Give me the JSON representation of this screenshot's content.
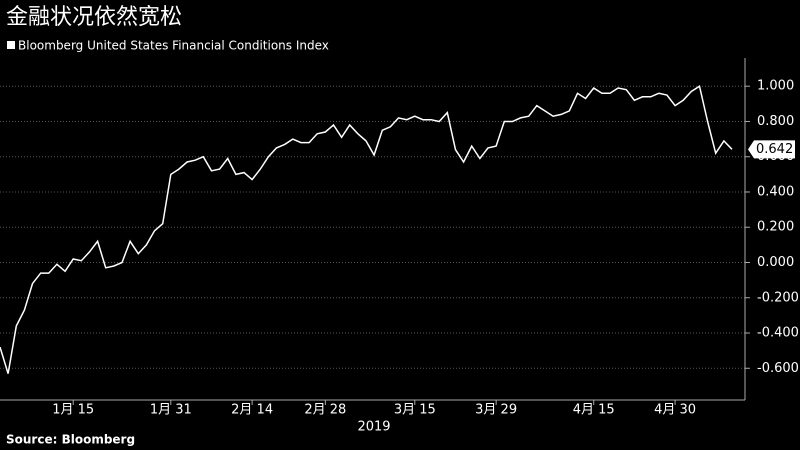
{
  "chart_data": {
    "type": "line",
    "title": "金融状况依然宽松",
    "legend_label": "Bloomberg United States Financial Conditions Index",
    "source": "Source: Bloomberg",
    "xlabel": "2019",
    "categories": [
      null,
      null,
      null,
      null,
      null,
      null,
      null,
      null,
      null,
      "1月 15",
      null,
      null,
      null,
      null,
      null,
      null,
      null,
      null,
      null,
      null,
      null,
      "1月 31",
      null,
      null,
      null,
      null,
      null,
      null,
      null,
      null,
      null,
      "2月 14",
      null,
      null,
      null,
      null,
      null,
      null,
      null,
      null,
      "2月 28",
      null,
      null,
      null,
      null,
      null,
      null,
      null,
      null,
      null,
      null,
      "3月 15",
      null,
      null,
      null,
      null,
      null,
      null,
      null,
      null,
      null,
      "3月 29",
      null,
      null,
      null,
      null,
      null,
      null,
      null,
      null,
      null,
      null,
      null,
      "4月 15",
      null,
      null,
      null,
      null,
      null,
      null,
      null,
      null,
      null,
      "4月 30",
      null,
      null,
      null,
      null,
      null,
      null,
      null
    ],
    "series": [
      {
        "name": "Bloomberg United States Financial Conditions Index",
        "color": "#ffffff",
        "values": [
          -0.48,
          -0.63,
          -0.36,
          -0.27,
          -0.12,
          -0.06,
          -0.06,
          -0.01,
          -0.05,
          0.02,
          0.01,
          0.06,
          0.12,
          -0.03,
          -0.02,
          0.0,
          0.12,
          0.05,
          0.1,
          0.18,
          0.22,
          0.5,
          0.53,
          0.57,
          0.58,
          0.6,
          0.52,
          0.53,
          0.59,
          0.5,
          0.51,
          0.47,
          0.53,
          0.6,
          0.65,
          0.67,
          0.7,
          0.68,
          0.68,
          0.73,
          0.74,
          0.78,
          0.71,
          0.78,
          0.73,
          0.69,
          0.61,
          0.75,
          0.77,
          0.82,
          0.81,
          0.83,
          0.81,
          0.81,
          0.8,
          0.85,
          0.64,
          0.57,
          0.66,
          0.59,
          0.65,
          0.66,
          0.8,
          0.8,
          0.82,
          0.83,
          0.89,
          0.86,
          0.83,
          0.84,
          0.86,
          0.96,
          0.93,
          0.99,
          0.96,
          0.96,
          0.99,
          0.98,
          0.92,
          0.94,
          0.94,
          0.96,
          0.95,
          0.89,
          0.92,
          0.97,
          1.0,
          0.8,
          0.62,
          0.69,
          0.642
        ]
      }
    ],
    "ylim": [
      -0.78,
      1.16
    ],
    "yticks": [
      {
        "value": 1.0,
        "label": "1.000"
      },
      {
        "value": 0.8,
        "label": "0.800"
      },
      {
        "value": 0.6,
        "label": "0.600"
      },
      {
        "value": 0.4,
        "label": "0.400"
      },
      {
        "value": 0.2,
        "label": "0.200"
      },
      {
        "value": 0.0,
        "label": "0.000"
      },
      {
        "value": -0.2,
        "label": "-0.200"
      },
      {
        "value": -0.4,
        "label": "-0.400"
      },
      {
        "value": -0.6,
        "label": "-0.600"
      }
    ],
    "grid": true
  }
}
